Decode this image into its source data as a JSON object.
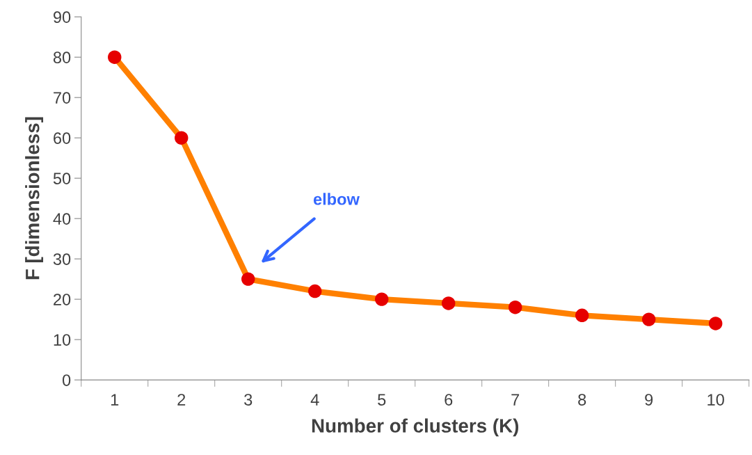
{
  "chart_data": {
    "type": "line",
    "xlabel": "Number of clusters (K)",
    "ylabel": "F [dimensionless]",
    "categories": [
      "1",
      "2",
      "3",
      "4",
      "5",
      "6",
      "7",
      "8",
      "9",
      "10"
    ],
    "series": [
      {
        "color": "#ff8000",
        "values": [
          80,
          60,
          25,
          22,
          20,
          19,
          18,
          16,
          15,
          14
        ]
      }
    ],
    "marker": "circle",
    "line_style": "solid",
    "ylim": [
      0,
      90
    ],
    "yticks": [
      0,
      10,
      20,
      30,
      40,
      50,
      60,
      70,
      80,
      90
    ],
    "grid": false,
    "legend": false,
    "annotations": [
      "elbow"
    ]
  }
}
